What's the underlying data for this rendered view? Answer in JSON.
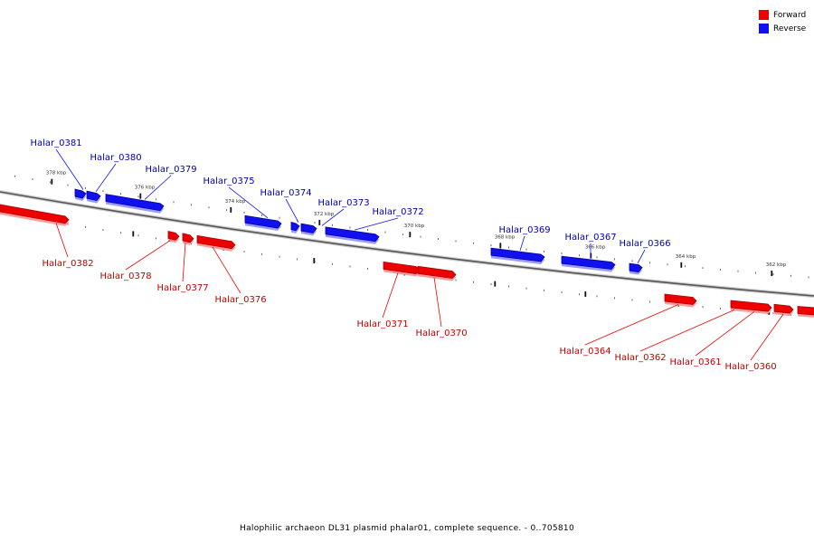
{
  "legend": {
    "forward_label": "Forward",
    "reverse_label": "Reverse",
    "forward_color": "#ee0000",
    "reverse_color": "#1111ee"
  },
  "caption": "Halophilic archaeon DL31 plasmid phalar01, complete sequence. - 0..705810",
  "ticks": {
    "upper": [
      "378 kbp",
      "376 kbp",
      "374 kbp",
      "372 kbp",
      "370 kbp",
      "368 kbp",
      "366 kbp",
      "364 kbp",
      "362 kbp"
    ]
  },
  "genes": [
    {
      "id": "Halar_0382",
      "strand": "forward"
    },
    {
      "id": "Halar_0381",
      "strand": "reverse"
    },
    {
      "id": "Halar_0380",
      "strand": "reverse"
    },
    {
      "id": "Halar_0379",
      "strand": "reverse"
    },
    {
      "id": "Halar_0378",
      "strand": "forward"
    },
    {
      "id": "Halar_0377",
      "strand": "forward"
    },
    {
      "id": "Halar_0376",
      "strand": "forward"
    },
    {
      "id": "Halar_0375",
      "strand": "reverse"
    },
    {
      "id": "Halar_0374",
      "strand": "reverse"
    },
    {
      "id": "Halar_0373",
      "strand": "reverse"
    },
    {
      "id": "Halar_0372",
      "strand": "reverse"
    },
    {
      "id": "Halar_0371",
      "strand": "forward"
    },
    {
      "id": "Halar_0370",
      "strand": "forward"
    },
    {
      "id": "Halar_0369",
      "strand": "reverse"
    },
    {
      "id": "Halar_0367",
      "strand": "reverse"
    },
    {
      "id": "Halar_0366",
      "strand": "reverse"
    },
    {
      "id": "Halar_0364",
      "strand": "forward"
    },
    {
      "id": "Halar_0362",
      "strand": "forward"
    },
    {
      "id": "Halar_0361",
      "strand": "forward"
    },
    {
      "id": "Halar_0360",
      "strand": "forward"
    }
  ]
}
